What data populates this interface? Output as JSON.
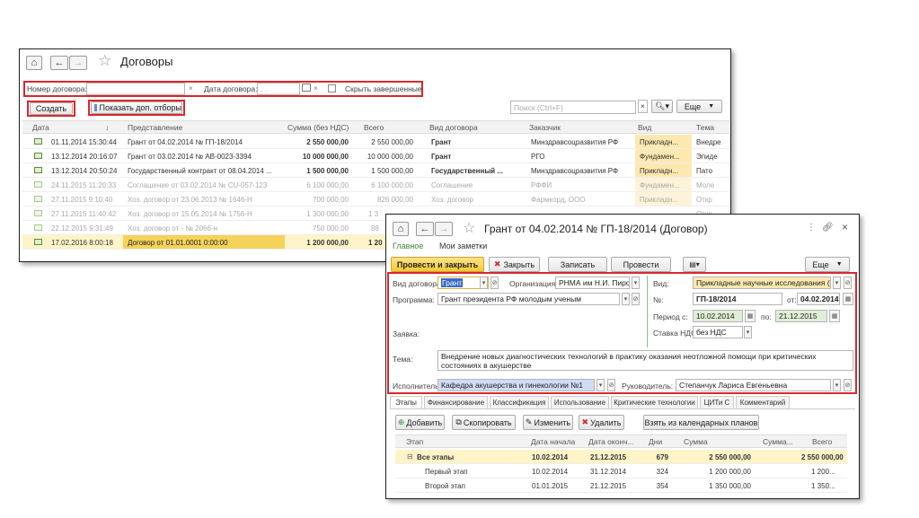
{
  "contracts_window": {
    "title": "Договоры",
    "filter": {
      "number_label": "Номер договора:",
      "date_label": "Дата договора:",
      "date_placeholder": ". .",
      "hide_completed_label": "Скрыть завершенные"
    },
    "create_label": "Создать",
    "show_filters_label": "Показать доп. отборы",
    "search_placeholder": "Поиск (Ctrl+F)",
    "more_label": "Еще",
    "columns": [
      "Дата",
      "Представление",
      "Сумма (без НДС)",
      "Всего",
      "Вид договора",
      "Заказчик",
      "Вид",
      "Тема"
    ],
    "rows": [
      {
        "date": "01.11.2014 15:30:44",
        "repr": "Грант от 04.02.2014 № ГП-18/2014",
        "sum": "2 550 000,00",
        "total": "2 550 000,00",
        "type": "Грант",
        "customer": "Минздравсоцразвития РФ",
        "kind": "Прикладн...",
        "theme": "Внедре"
      },
      {
        "date": "13.12.2014 20:16:07",
        "repr": "Грант от 03.02.2014 № АВ-0023-3394",
        "sum": "10 000 000,00",
        "total": "10 000 000,00",
        "type": "Грант",
        "customer": "РГО",
        "kind": "Фундамен...",
        "theme": "Эпиде"
      },
      {
        "date": "13.12.2014 20:50:24",
        "repr": "Государственный контракт от 08.04.2014 ...",
        "sum": "1 500 000,00",
        "total": "1 500 000,00",
        "type": "Государственный ...",
        "customer": "Минздравсоцразвития РФ",
        "kind": "Прикладн...",
        "theme": "Пато"
      },
      {
        "date": "24.11.2015 11:20:33",
        "repr": "Соглашение от 03.02.2014 № CU-057-123",
        "sum": "6 100 000,00",
        "total": "6 100 000,00",
        "type": "Соглашение",
        "customer": "РФФИ",
        "kind": "Фундамен...",
        "theme": "Моле"
      },
      {
        "date": "27.11.2015 9:10:40",
        "repr": "Хоз. договор от 23.06.2013 № 1646-Н",
        "sum": "700 000,00",
        "total": "826 000,00",
        "type": "Хоз. договор",
        "customer": "Фармкорд, ООО",
        "kind": "Прикладн...",
        "theme": "Откр"
      },
      {
        "date": "27.11.2015 11:40:42",
        "repr": "Хоз. договор от 15.05.2014 № 1756-Н",
        "sum": "1 300 000,00",
        "total": "1 3",
        "type": "",
        "customer": "",
        "kind": "",
        "theme": "Откр"
      },
      {
        "date": "22.12.2015 9:31:49",
        "repr": "Хоз. договор от - № 2066-н",
        "sum": "750 000,00",
        "total": "88",
        "type": "",
        "customer": "",
        "kind": "",
        "theme": "Откр"
      },
      {
        "date": "17.02.2016 8:00:18",
        "repr": "Договор от 01.01.0001 0:00:00",
        "sum": "1 200 000,00",
        "total": "1 20",
        "type": "",
        "customer": "",
        "kind": "",
        "theme": ""
      }
    ]
  },
  "grant_window": {
    "title": "Грант от 04.02.2014 № ГП-18/2014 (Договор)",
    "nav_main": "Главное",
    "nav_notes": "Мои заметки",
    "toolbar": {
      "post_close": "Провести и закрыть",
      "close": "Закрыть",
      "save": "Записать",
      "post": "Провести",
      "more": "Еще"
    },
    "form": {
      "contract_type_label": "Вид договора:",
      "contract_type_value": "Грант",
      "org_label": "Организация:",
      "org_value": "РНМА им Н.И. Пирогов",
      "kind_label": "Вид:",
      "kind_value": "Прикладные научные исследования (НИР)",
      "program_label": "Программа:",
      "program_value": "Грант президента РФ молодым ученым",
      "number_label": "№:",
      "number_value": "ГП-18/2014",
      "from_label": "от:",
      "from_value": "04.02.2014",
      "period_label": "Период с:",
      "period_from": "10.02.2014",
      "period_to_label": "по:",
      "period_to": "21.12.2015",
      "vat_label": "Ставка НДС:",
      "vat_value": "без НДС",
      "request_label": "Заявка:",
      "topic_label": "Тема:",
      "topic_value": "Внедрение новых диагностических технологий в практику оказания неотложной помощи при критических состояниях в акушерстве",
      "executor_label": "Исполнитель:",
      "executor_value": "Кафедра акушерства и гинекологии №1",
      "head_label": "Руководитель:",
      "head_value": "Степанчук Лариса Евгеньевна"
    },
    "tabs": [
      "Этапы",
      "Финансирование",
      "Классификация",
      "Использование",
      "Критические технологии",
      "ЦИТи С",
      "Комментарий"
    ],
    "stage_toolbar": {
      "add": "Добавить",
      "copy": "Скопировать",
      "edit": "Изменить",
      "delete": "Удалить",
      "from_plans": "Взять из календарных планов"
    },
    "stage_columns": [
      "Этап",
      "Дата начала",
      "Дата оконч...",
      "Дни",
      "Сумма",
      "Сумма...",
      "Всего"
    ],
    "stages": [
      {
        "name": "Все этапы",
        "start": "10.02.2014",
        "end": "21.12.2015",
        "days": "679",
        "sum": "2 550 000,00",
        "sum2": "",
        "total": "2 550 000,00"
      },
      {
        "name": "Первый этап",
        "start": "10.02.2014",
        "end": "31.12.2014",
        "days": "324",
        "sum": "1 200 000,00",
        "sum2": "",
        "total": "1 200..."
      },
      {
        "name": "Второй этап",
        "start": "01.01.2015",
        "end": "21.12.2015",
        "days": "354",
        "sum": "1 350 000,00",
        "sum2": "",
        "total": "1 350..."
      }
    ]
  }
}
